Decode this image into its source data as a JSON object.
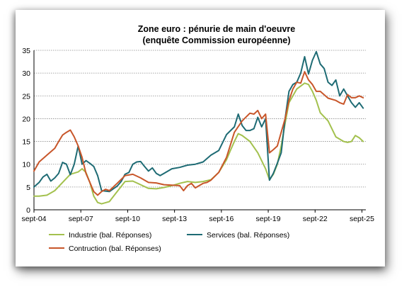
{
  "chart_data": {
    "type": "line",
    "title": "Zone euro : pénurie de main d'oeuvre",
    "subtitle": "(enquête Commission européenne)",
    "xlabel": "",
    "ylabel": "",
    "x_tick_labels": [
      "sept-04",
      "sept-07",
      "sept-10",
      "sept-13",
      "sept-16",
      "sept-19",
      "sept-22",
      "sept-25"
    ],
    "x_range": [
      2004.67,
      2025.92
    ],
    "ylim": [
      0,
      35
    ],
    "y_ticks": [
      0,
      5,
      10,
      15,
      20,
      25,
      30,
      35
    ],
    "grid": "horizontal",
    "legend": "bottom",
    "series": [
      {
        "name": "Industrie (bal. Réponses)",
        "color": "#a3c14e",
        "x": [
          2004.67,
          2005.0,
          2005.5,
          2006.0,
          2006.5,
          2007.0,
          2007.5,
          2007.75,
          2008.0,
          2008.25,
          2008.5,
          2008.75,
          2009.0,
          2009.5,
          2010.0,
          2010.5,
          2011.0,
          2011.5,
          2012.0,
          2012.5,
          2013.0,
          2013.5,
          2014.0,
          2014.5,
          2015.0,
          2015.5,
          2016.0,
          2016.5,
          2017.0,
          2017.25,
          2017.5,
          2017.75,
          2018.0,
          2018.5,
          2019.0,
          2019.5,
          2019.75,
          2020.0,
          2020.25,
          2020.5,
          2020.75,
          2021.0,
          2021.5,
          2022.0,
          2022.25,
          2022.5,
          2022.75,
          2023.0,
          2023.5,
          2024.0,
          2024.5,
          2024.75,
          2025.0,
          2025.25,
          2025.5,
          2025.75
        ],
        "values": [
          3.0,
          3.0,
          3.2,
          4.2,
          6.0,
          7.8,
          8.3,
          9.0,
          8.2,
          6.0,
          3.0,
          1.6,
          1.3,
          1.8,
          4.0,
          6.2,
          6.3,
          5.5,
          4.7,
          4.6,
          4.9,
          5.3,
          5.8,
          6.2,
          6.0,
          6.2,
          6.6,
          8.2,
          11.0,
          13.0,
          15.0,
          16.7,
          16.3,
          15.0,
          12.5,
          9.0,
          6.6,
          7.8,
          10.0,
          14.0,
          19.0,
          23.5,
          26.5,
          27.8,
          27.5,
          26.0,
          24.0,
          21.3,
          19.5,
          16.0,
          15.0,
          14.8,
          15.0,
          16.3,
          15.8,
          15.0
        ]
      },
      {
        "name": "Services (bal. Réponses)",
        "color": "#1e6b74",
        "x": [
          2004.67,
          2005.0,
          2005.25,
          2005.5,
          2005.75,
          2006.0,
          2006.25,
          2006.5,
          2006.75,
          2007.0,
          2007.25,
          2007.5,
          2007.75,
          2008.0,
          2008.25,
          2008.5,
          2008.75,
          2009.0,
          2009.5,
          2010.0,
          2010.25,
          2010.5,
          2010.75,
          2011.0,
          2011.25,
          2011.5,
          2011.75,
          2012.0,
          2012.25,
          2012.5,
          2012.75,
          2013.0,
          2013.5,
          2014.0,
          2014.5,
          2015.0,
          2015.5,
          2016.0,
          2016.5,
          2017.0,
          2017.5,
          2017.75,
          2018.0,
          2018.25,
          2018.5,
          2018.75,
          2019.0,
          2019.25,
          2019.5,
          2019.75,
          2020.0,
          2020.25,
          2020.5,
          2020.75,
          2021.0,
          2021.25,
          2021.5,
          2021.75,
          2022.0,
          2022.25,
          2022.5,
          2022.75,
          2023.0,
          2023.25,
          2023.5,
          2023.75,
          2024.0,
          2024.25,
          2024.5,
          2024.75,
          2025.0,
          2025.25,
          2025.5,
          2025.75
        ],
        "values": [
          5.0,
          6.0,
          7.2,
          7.8,
          6.3,
          7.0,
          8.0,
          10.4,
          10.0,
          7.7,
          10.0,
          14.0,
          10.0,
          10.8,
          10.2,
          9.5,
          7.5,
          4.2,
          4.0,
          5.2,
          6.2,
          7.8,
          8.2,
          10.0,
          10.5,
          10.6,
          9.5,
          8.5,
          9.2,
          8.0,
          7.5,
          8.0,
          9.0,
          9.3,
          9.8,
          10.0,
          10.5,
          12.0,
          13.0,
          16.5,
          18.2,
          21.0,
          18.5,
          17.4,
          17.4,
          17.8,
          20.3,
          18.2,
          20.0,
          6.5,
          8.0,
          10.2,
          12.5,
          20.0,
          26.0,
          27.5,
          28.0,
          30.0,
          33.6,
          29.8,
          32.8,
          34.7,
          32.0,
          31.0,
          28.0,
          27.3,
          28.5,
          25.0,
          26.5,
          25.0,
          23.5,
          22.5,
          23.5,
          22.3
        ]
      },
      {
        "name": "Contruction (bal. Réponses)",
        "color": "#c8562a",
        "x": [
          2004.67,
          2005.0,
          2005.5,
          2006.0,
          2006.25,
          2006.5,
          2006.75,
          2007.0,
          2007.25,
          2007.5,
          2007.75,
          2008.0,
          2008.25,
          2008.5,
          2008.75,
          2009.0,
          2009.25,
          2009.5,
          2010.0,
          2010.5,
          2011.0,
          2011.5,
          2012.0,
          2012.5,
          2013.0,
          2013.5,
          2014.0,
          2014.25,
          2014.5,
          2014.75,
          2015.0,
          2015.25,
          2015.5,
          2015.75,
          2016.0,
          2016.5,
          2017.0,
          2017.5,
          2018.0,
          2018.5,
          2018.75,
          2019.0,
          2019.25,
          2019.5,
          2019.75,
          2020.0,
          2020.25,
          2020.5,
          2020.75,
          2021.0,
          2021.25,
          2021.5,
          2021.75,
          2022.0,
          2022.25,
          2022.5,
          2022.75,
          2023.0,
          2023.5,
          2024.0,
          2024.25,
          2024.5,
          2024.75,
          2025.0,
          2025.25,
          2025.5,
          2025.75
        ],
        "values": [
          8.5,
          10.5,
          12.0,
          13.5,
          15.0,
          16.4,
          17.0,
          17.5,
          16.0,
          14.0,
          11.5,
          8.0,
          6.0,
          4.0,
          3.2,
          4.0,
          4.5,
          4.2,
          5.8,
          7.5,
          7.8,
          7.0,
          6.0,
          5.9,
          5.5,
          5.4,
          5.3,
          4.2,
          5.3,
          5.8,
          4.8,
          5.3,
          5.8,
          6.0,
          6.5,
          8.2,
          11.5,
          17.0,
          19.5,
          21.2,
          21.0,
          21.8,
          20.0,
          21.0,
          12.5,
          13.2,
          14.0,
          17.0,
          20.0,
          24.0,
          26.5,
          28.0,
          27.8,
          30.3,
          28.5,
          27.5,
          26.0,
          26.0,
          24.5,
          24.0,
          23.5,
          23.2,
          25.3,
          24.6,
          24.6,
          25.0,
          24.6
        ]
      }
    ]
  }
}
